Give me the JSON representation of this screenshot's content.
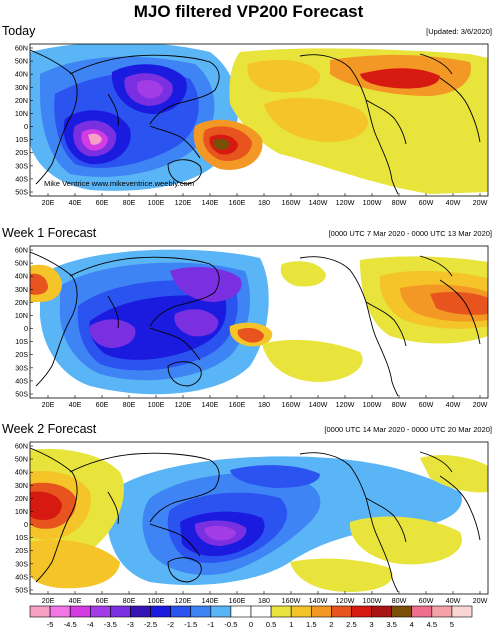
{
  "title": "MJO filtered VP200 Forecast",
  "panels": [
    {
      "title": "Today",
      "range": "[Updated: 3/6/2020]",
      "credit": "Mike Ventrice  www.mikeventrice.weebly.com"
    },
    {
      "title": "Week 1 Forecast",
      "range": "[0000 UTC 7 Mar 2020 - 0000 UTC 13 Mar 2020]"
    },
    {
      "title": "Week 2 Forecast",
      "range": "[0000 UTC 14 Mar 2020 - 0000 UTC 20 Mar 2020]"
    }
  ],
  "lat_labels": [
    "60N",
    "50N",
    "40N",
    "30N",
    "20N",
    "10N",
    "0",
    "10S",
    "20S",
    "30S",
    "40S",
    "50S"
  ],
  "lon_labels": [
    "20E",
    "40E",
    "60E",
    "80E",
    "100E",
    "120E",
    "140E",
    "160E",
    "180",
    "160W",
    "140W",
    "120W",
    "100W",
    "80W",
    "60W",
    "40W",
    "20W"
  ],
  "colorbar": {
    "labels": [
      "-5",
      "-4.5",
      "-4",
      "-3.5",
      "-3",
      "-2.5",
      "-2",
      "-1.5",
      "-1",
      "-0.5",
      "0",
      "0.5",
      "1",
      "1.5",
      "2",
      "2.5",
      "3",
      "3.5",
      "4",
      "4.5",
      "5"
    ],
    "colors": [
      "#f6a0c6",
      "#f475e4",
      "#d23ce2",
      "#a33be6",
      "#7a2fe0",
      "#3813b4",
      "#1b1be0",
      "#2a53f0",
      "#3f84f5",
      "#5ab5f6",
      "#ffffff",
      "#ffffff",
      "#e8e43c",
      "#f4c428",
      "#f39824",
      "#e8541e",
      "#d61a12",
      "#a81414",
      "#7a5008",
      "#ee6f8b",
      "#f4a1a7",
      "#f9d6d4"
    ]
  },
  "colors": {
    "land": "#000000",
    "grid": "#333333"
  }
}
